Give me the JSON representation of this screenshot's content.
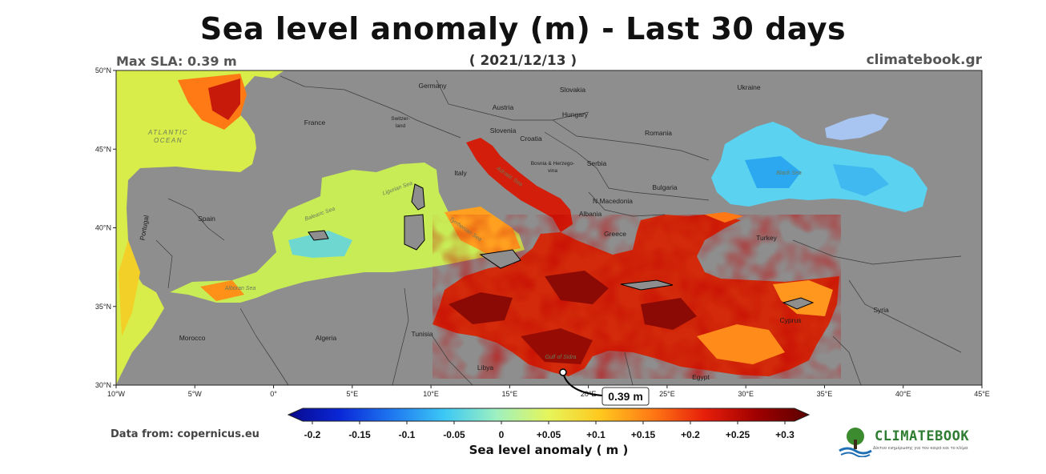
{
  "header": {
    "title": "Sea level anomaly (m) - Last 30 days",
    "date": "( 2021/12/13 )",
    "max_sla": "Max SLA: 0.39 m",
    "site": "climatebook.gr"
  },
  "footer": {
    "source": "Data from: copernicus.eu",
    "colorbar_title": "Sea level anomaly ( m )",
    "logo_text": "CLIMATEBOOK",
    "logo_subtitle": "Δίκτυο ενημέρωσης για τον καιρό και το κλίμα"
  },
  "map": {
    "lon_range": [
      -10,
      45
    ],
    "lat_range": [
      30,
      50
    ],
    "lon_ticks": [
      "10°W",
      "5°W",
      "0°",
      "5°E",
      "10°E",
      "15°E",
      "20°E",
      "25°E",
      "30°E",
      "35°E",
      "40°E",
      "45°E"
    ],
    "lat_ticks": [
      "50°N",
      "45°N",
      "40°N",
      "35°N",
      "30°N"
    ],
    "land_color": "#8e8e8e",
    "max_marker": {
      "label": "0.39 m",
      "lon": 18.0,
      "lat": 30.8
    },
    "country_labels": [
      "Germany",
      "Slovakia",
      "Ukraine",
      "Austria",
      "Hungary",
      "France",
      "Switzer-land",
      "Slovenia",
      "Croatia",
      "Romania",
      "Bosnia & Herzego-vina",
      "Serbia",
      "Italy",
      "Bulgaria",
      "N.Macedonia",
      "Albania",
      "Greece",
      "Turkey",
      "Spain",
      "Portugal",
      "Morocco",
      "Algeria",
      "Tunisia",
      "Libya",
      "Egypt",
      "Cyprus",
      "Syria"
    ],
    "sea_labels": [
      "ATLANTIC OCEAN",
      "Ligurian Sea",
      "Balearic Sea",
      "Tyrrhenian Sea",
      "Adriatic Sea",
      "Black Sea",
      "Alboran Sea",
      "Gulf of Sidra"
    ]
  },
  "colorbar": {
    "tick_labels": [
      "-0.2",
      "-0.15",
      "-0.1",
      "-0.05",
      "0",
      "+0.05",
      "+0.1",
      "+0.15",
      "+0.2",
      "+0.25",
      "+0.3"
    ],
    "stops": [
      "#08088c",
      "#0a28d8",
      "#1e78f0",
      "#3cc8f5",
      "#9ef0c0",
      "#e6f55a",
      "#ffc81e",
      "#ff7814",
      "#e61e0a",
      "#a00000",
      "#5a0000"
    ]
  }
}
